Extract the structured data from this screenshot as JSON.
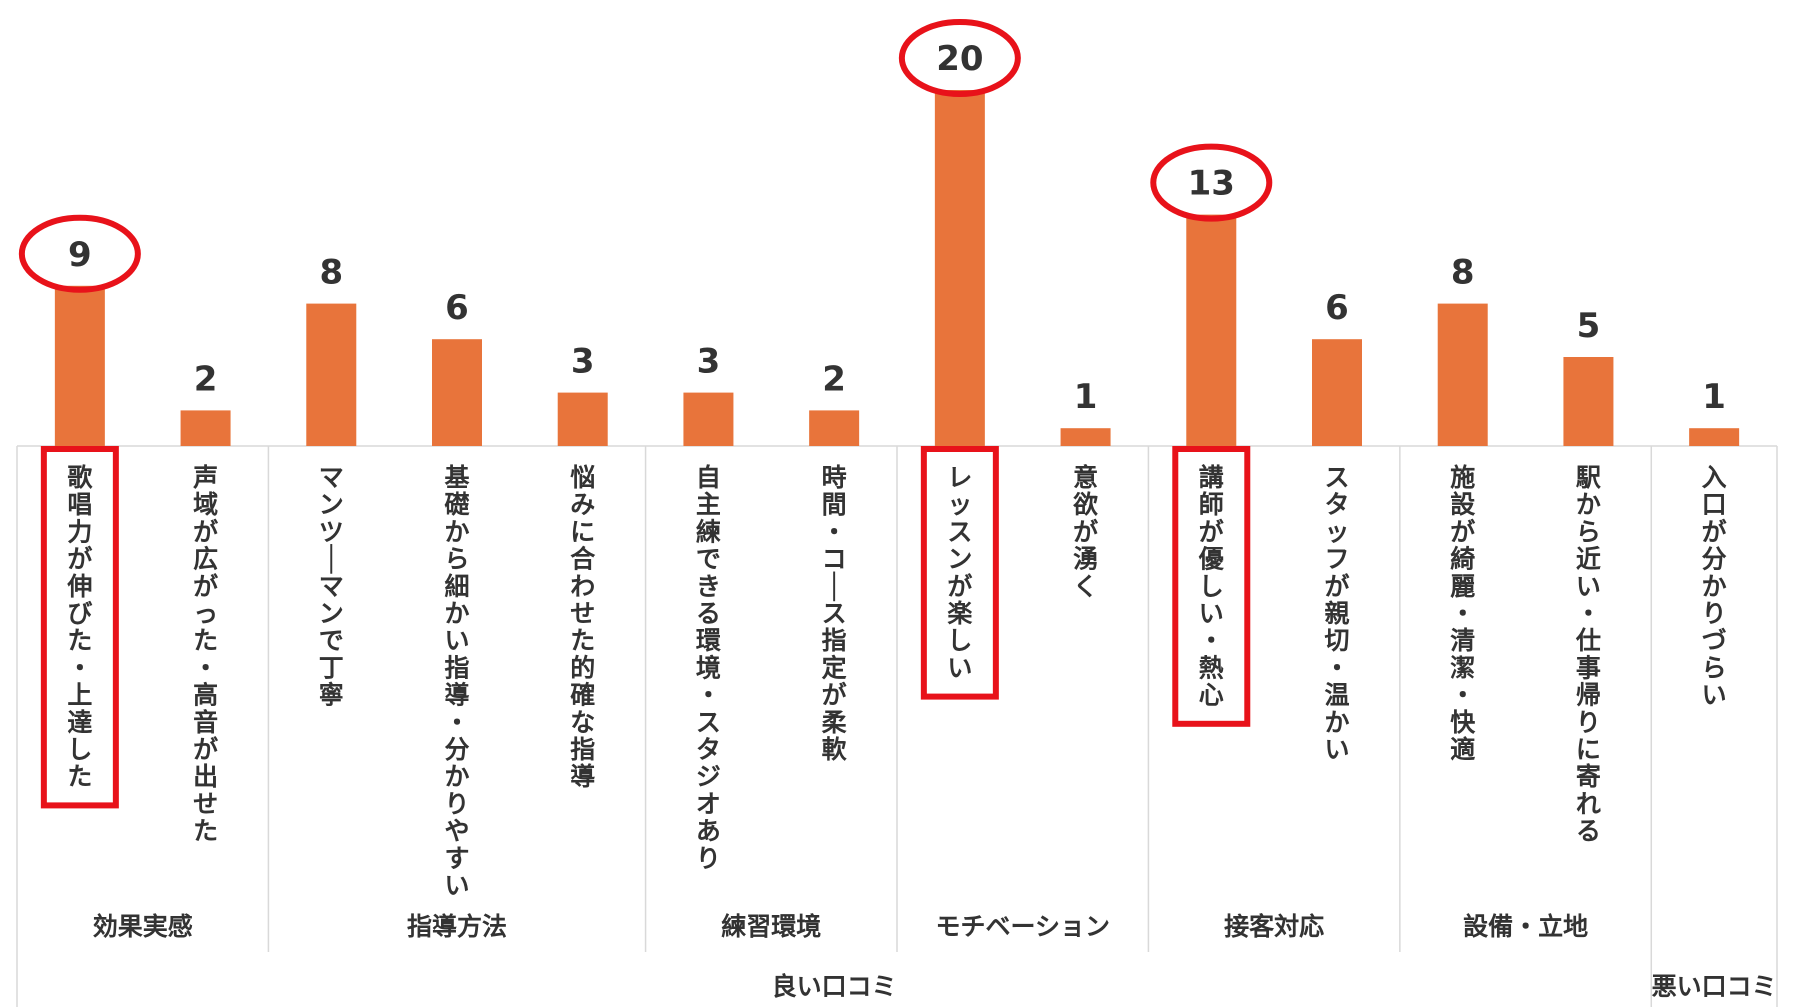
{
  "chart_data": {
    "type": "bar",
    "title": "",
    "xlabel": "",
    "ylabel": "",
    "ylim": [
      0,
      22
    ],
    "grid": false,
    "legend": "none",
    "bar_color": "#E8743B",
    "highlight_color": "#E8121A",
    "categories": [
      "歌唱力が伸びた・上達した",
      "声域が広がった・高音が出せた",
      "マンツ―マンで丁寧",
      "基礎から細かい指導・分かりやすい",
      "悩みに合わせた的確な指導",
      "自主練できる環境・スタジオあり",
      "時間・コ―ス指定が柔軟",
      "レッスンが楽しい",
      "意欲が湧く",
      "講師が優しい・熱心",
      "スタッフが親切・温かい",
      "施設が綺麗・清潔・快適",
      "駅から近い・仕事帰りに寄れる",
      "入口が分かりづらい"
    ],
    "values": [
      9,
      2,
      8,
      6,
      3,
      3,
      2,
      20,
      1,
      13,
      6,
      8,
      5,
      1
    ],
    "highlighted": [
      0,
      7,
      9
    ],
    "groups": [
      {
        "label": "効果実感",
        "start": 0,
        "count": 2
      },
      {
        "label": "指導方法",
        "start": 2,
        "count": 3
      },
      {
        "label": "練習環境",
        "start": 5,
        "count": 2
      },
      {
        "label": "モチベーション",
        "start": 7,
        "count": 2
      },
      {
        "label": "接客対応",
        "start": 9,
        "count": 2
      },
      {
        "label": "設備・立地",
        "start": 11,
        "count": 2
      },
      {
        "label": "",
        "start": 13,
        "count": 1
      }
    ],
    "supergroups": [
      {
        "label": "良い口コミ",
        "start": 0,
        "count": 13
      },
      {
        "label": "悪い口コミ",
        "start": 13,
        "count": 1
      }
    ]
  }
}
